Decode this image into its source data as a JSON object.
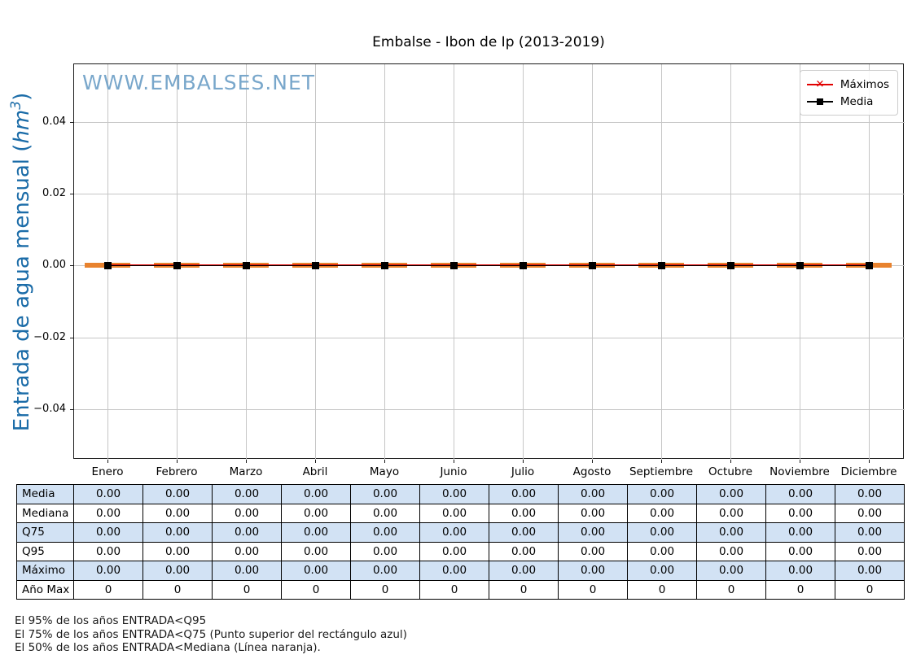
{
  "figure": {
    "title": "Embalse - Ibon de Ip (2013-2019)",
    "watermark": "WWW.EMBALSES.NET",
    "ylabel": {
      "text": "Entrada de agua mensual (",
      "unit": "hm",
      "exp": "3",
      "close": ")"
    }
  },
  "legend": {
    "items": [
      {
        "label": "Máximos",
        "color": "#e10000",
        "marker": "x"
      },
      {
        "label": "Media",
        "color": "#000000",
        "marker": "square"
      }
    ]
  },
  "chart_data": {
    "type": "line",
    "title": "Embalse - Ibon de Ip (2013-2019)",
    "ylabel": "Entrada de agua mensual (hm³)",
    "xlabel": "",
    "categories": [
      "Enero",
      "Febrero",
      "Marzo",
      "Abril",
      "Mayo",
      "Junio",
      "Julio",
      "Agosto",
      "Septiembre",
      "Octubre",
      "Noviembre",
      "Diciembre"
    ],
    "series": [
      {
        "name": "Máximos",
        "marker": "x",
        "color": "#e10000",
        "values": [
          0,
          0,
          0,
          0,
          0,
          0,
          0,
          0,
          0,
          0,
          0,
          0
        ]
      },
      {
        "name": "Media",
        "marker": "square",
        "color": "#000000",
        "values": [
          0,
          0,
          0,
          0,
          0,
          0,
          0,
          0,
          0,
          0,
          0,
          0
        ]
      },
      {
        "name": "Mediana",
        "marker": "hbar",
        "color": "#e8822e",
        "values": [
          0,
          0,
          0,
          0,
          0,
          0,
          0,
          0,
          0,
          0,
          0,
          0
        ]
      }
    ],
    "yticks": [
      0.04,
      0.02,
      0,
      -0.02,
      -0.04
    ],
    "ytick_labels": [
      "0.04",
      "0.02",
      "0.00",
      "−0.02",
      "−0.04"
    ],
    "ylim": [
      -0.054,
      0.056
    ],
    "grid": true,
    "legend_position": "upper right"
  },
  "table": {
    "row_headers": [
      "Media",
      "Mediana",
      "Q75",
      "Q95",
      "Máximo",
      "Año Max"
    ],
    "rows": [
      [
        "0.00",
        "0.00",
        "0.00",
        "0.00",
        "0.00",
        "0.00",
        "0.00",
        "0.00",
        "0.00",
        "0.00",
        "0.00",
        "0.00"
      ],
      [
        "0.00",
        "0.00",
        "0.00",
        "0.00",
        "0.00",
        "0.00",
        "0.00",
        "0.00",
        "0.00",
        "0.00",
        "0.00",
        "0.00"
      ],
      [
        "0.00",
        "0.00",
        "0.00",
        "0.00",
        "0.00",
        "0.00",
        "0.00",
        "0.00",
        "0.00",
        "0.00",
        "0.00",
        "0.00"
      ],
      [
        "0.00",
        "0.00",
        "0.00",
        "0.00",
        "0.00",
        "0.00",
        "0.00",
        "0.00",
        "0.00",
        "0.00",
        "0.00",
        "0.00"
      ],
      [
        "0.00",
        "0.00",
        "0.00",
        "0.00",
        "0.00",
        "0.00",
        "0.00",
        "0.00",
        "0.00",
        "0.00",
        "0.00",
        "0.00"
      ],
      [
        "0",
        "0",
        "0",
        "0",
        "0",
        "0",
        "0",
        "0",
        "0",
        "0",
        "0",
        "0"
      ]
    ],
    "shaded_rows": [
      0,
      2,
      4
    ],
    "shade_color": "#d2e2f4"
  },
  "footnotes": [
    "El 95% de los años ENTRADA<Q95",
    "El 75% de los años ENTRADA<Q75 (Punto superior del rectángulo azul)",
    "El 50% de los años ENTRADA<Mediana (Línea naranja)."
  ]
}
